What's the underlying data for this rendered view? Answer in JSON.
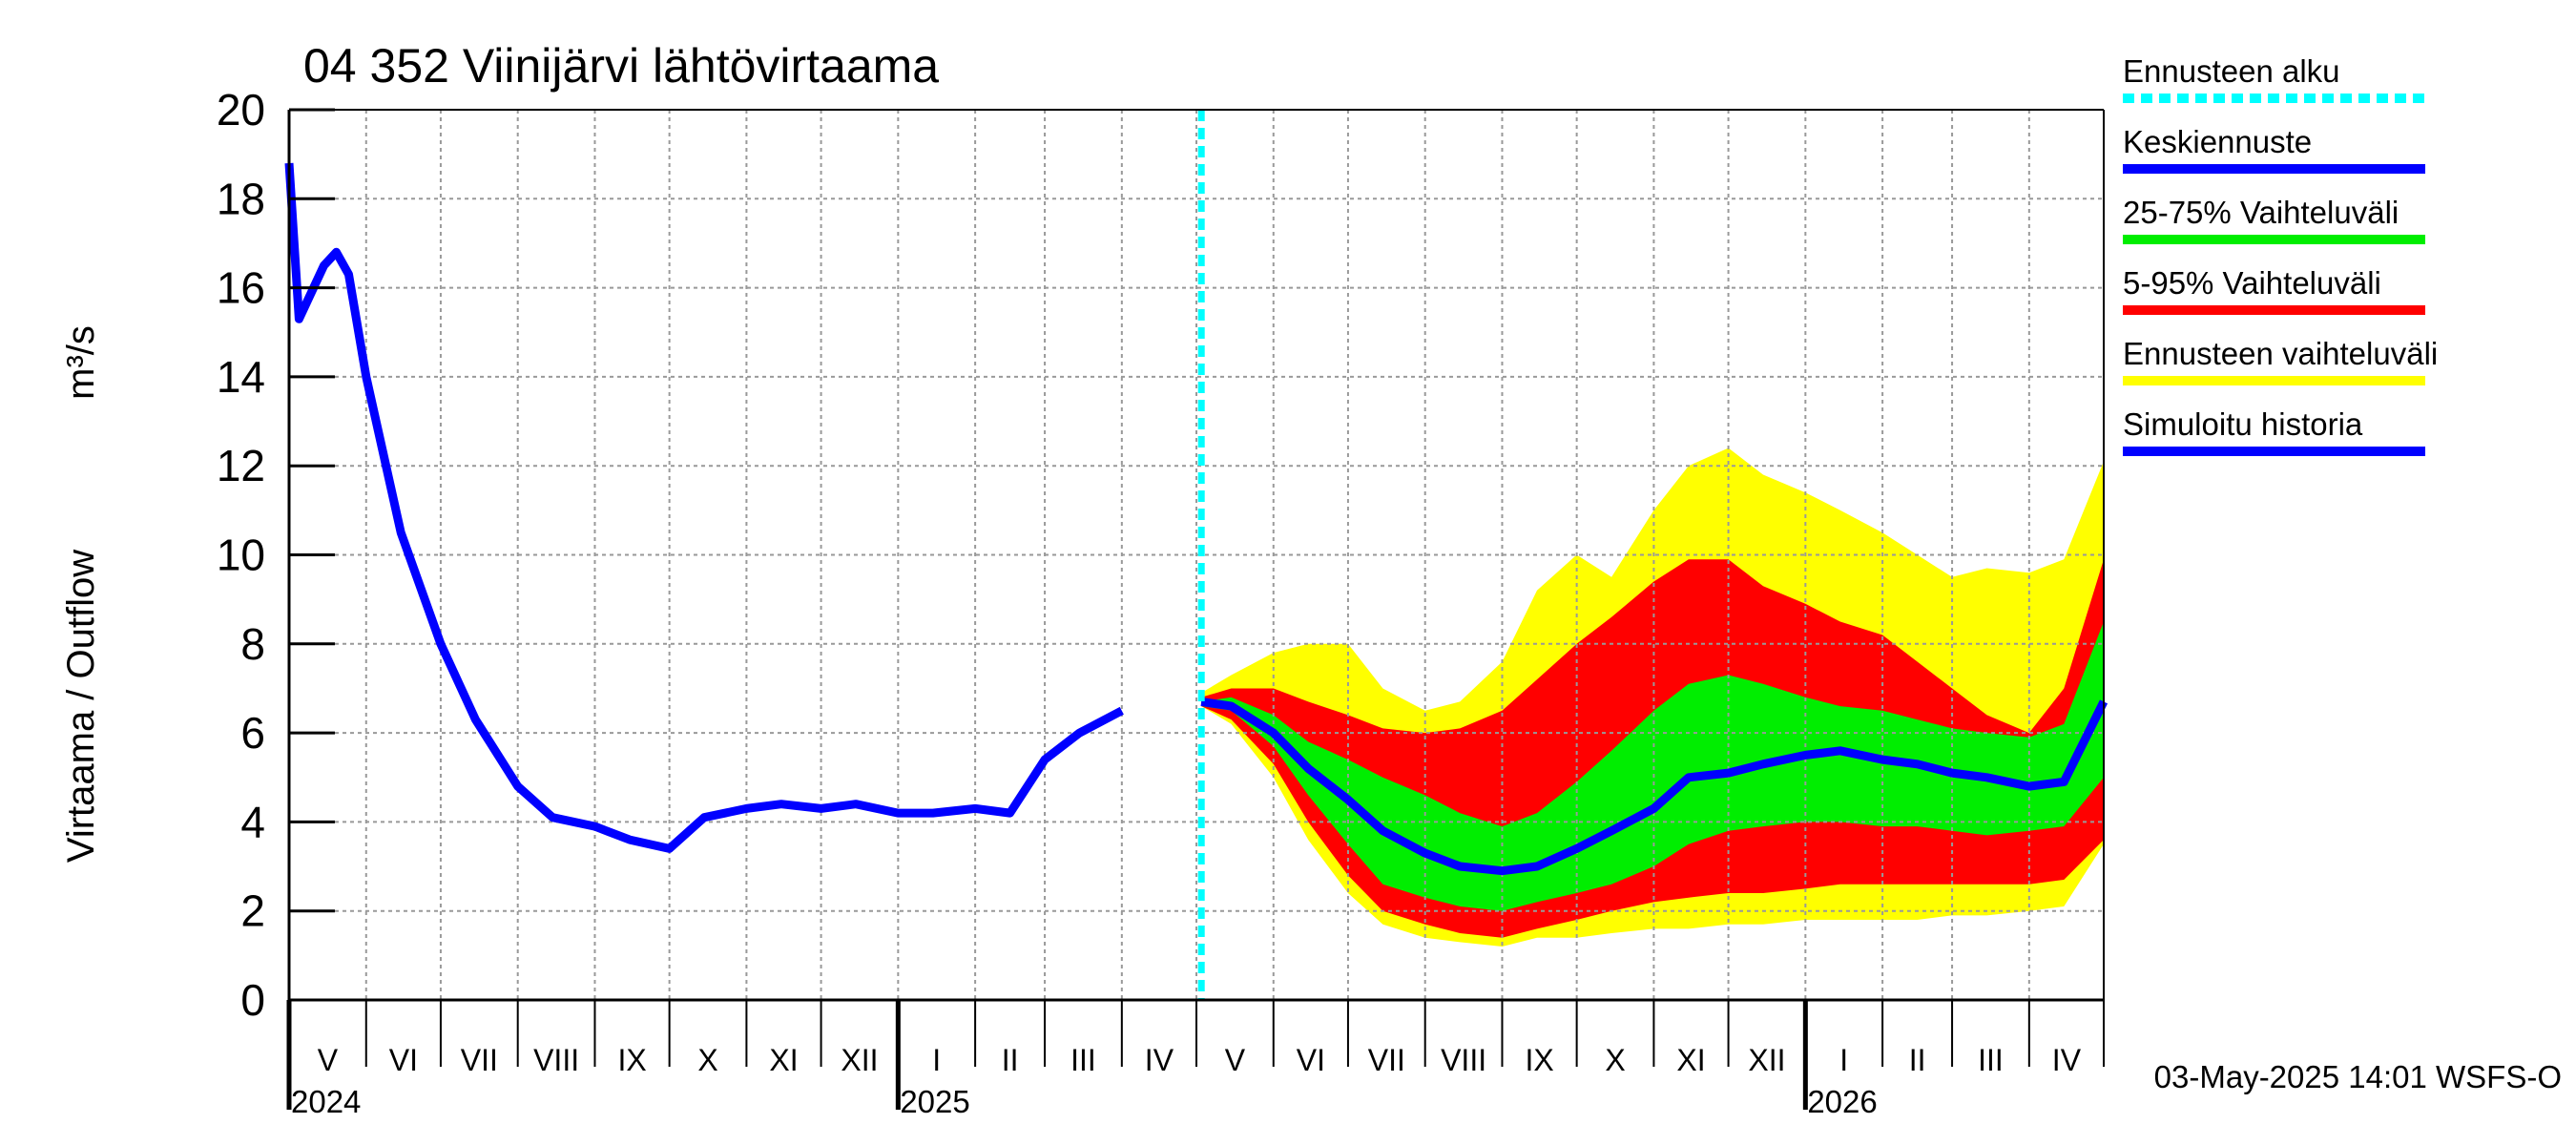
{
  "chart_data": {
    "type": "line",
    "title": "04 352 Viinijärvi lähtövirtaama",
    "ylabel": "Virtaama / Outflow",
    "yunit": "m³/s",
    "ylim": [
      0,
      20
    ],
    "yticks": [
      0,
      2,
      4,
      6,
      8,
      10,
      12,
      14,
      16,
      18,
      20
    ],
    "xlim": [
      "2024-05-01",
      "2026-05-01"
    ],
    "forecast_start": "2025-05-03",
    "grid": true,
    "legend_position": "right",
    "months": [
      {
        "label": "V",
        "start": "2024-05-01"
      },
      {
        "label": "VI",
        "start": "2024-06-01"
      },
      {
        "label": "VII",
        "start": "2024-07-01"
      },
      {
        "label": "VIII",
        "start": "2024-08-01"
      },
      {
        "label": "IX",
        "start": "2024-09-01"
      },
      {
        "label": "X",
        "start": "2024-10-01"
      },
      {
        "label": "XI",
        "start": "2024-11-01"
      },
      {
        "label": "XII",
        "start": "2024-12-01"
      },
      {
        "label": "I",
        "start": "2025-01-01"
      },
      {
        "label": "II",
        "start": "2025-02-01"
      },
      {
        "label": "III",
        "start": "2025-03-01"
      },
      {
        "label": "IV",
        "start": "2025-04-01"
      },
      {
        "label": "V",
        "start": "2025-05-01"
      },
      {
        "label": "VI",
        "start": "2025-06-01"
      },
      {
        "label": "VII",
        "start": "2025-07-01"
      },
      {
        "label": "VIII",
        "start": "2025-08-01"
      },
      {
        "label": "IX",
        "start": "2025-09-01"
      },
      {
        "label": "X",
        "start": "2025-10-01"
      },
      {
        "label": "XI",
        "start": "2025-11-01"
      },
      {
        "label": "XII",
        "start": "2025-12-01"
      },
      {
        "label": "I",
        "start": "2026-01-01"
      },
      {
        "label": "II",
        "start": "2026-02-01"
      },
      {
        "label": "III",
        "start": "2026-03-01"
      },
      {
        "label": "IV",
        "start": "2026-04-01"
      }
    ],
    "years": [
      {
        "label": "2024",
        "date": "2024-05-01"
      },
      {
        "label": "2025",
        "date": "2025-01-01"
      },
      {
        "label": "2026",
        "date": "2026-01-01"
      }
    ],
    "x": [
      "2024-05-01",
      "2024-05-05",
      "2024-05-15",
      "2024-05-20",
      "2024-05-25",
      "2024-06-01",
      "2024-06-15",
      "2024-07-01",
      "2024-07-15",
      "2024-08-01",
      "2024-08-15",
      "2024-09-01",
      "2024-09-15",
      "2024-10-01",
      "2024-10-15",
      "2024-11-01",
      "2024-11-15",
      "2024-12-01",
      "2024-12-15",
      "2025-01-01",
      "2025-01-15",
      "2025-02-01",
      "2025-02-15",
      "2025-03-01",
      "2025-03-15",
      "2025-04-01",
      "2025-04-10",
      "2025-04-20",
      "2025-05-03"
    ],
    "series": [
      {
        "name": "Simuloitu historia",
        "color": "#0000ff",
        "values": [
          18.8,
          15.3,
          16.5,
          16.8,
          16.3,
          14.0,
          10.5,
          8.0,
          6.3,
          4.8,
          4.1,
          3.9,
          3.6,
          3.4,
          4.1,
          4.3,
          4.4,
          4.3,
          4.4,
          4.2,
          4.2,
          4.3,
          4.2,
          5.4,
          6.0,
          6.5,
          null,
          null,
          null
        ]
      }
    ],
    "forecast": {
      "x": [
        "2025-05-03",
        "2025-05-15",
        "2025-06-01",
        "2025-06-15",
        "2025-07-01",
        "2025-07-15",
        "2025-08-01",
        "2025-08-15",
        "2025-09-01",
        "2025-09-15",
        "2025-10-01",
        "2025-10-15",
        "2025-11-01",
        "2025-11-15",
        "2025-12-01",
        "2025-12-15",
        "2026-01-01",
        "2026-01-15",
        "2026-02-01",
        "2026-02-15",
        "2026-03-01",
        "2026-03-15",
        "2026-04-01",
        "2026-04-15",
        "2026-05-01"
      ],
      "bands": [
        {
          "name": "Ennusteen vaihteluväli",
          "color": "#ffff00",
          "lower": [
            6.6,
            6.2,
            5.0,
            3.6,
            2.4,
            1.7,
            1.4,
            1.3,
            1.2,
            1.4,
            1.4,
            1.5,
            1.6,
            1.6,
            1.7,
            1.7,
            1.8,
            1.8,
            1.8,
            1.8,
            1.9,
            1.9,
            2.0,
            2.1,
            3.5
          ],
          "upper": [
            6.9,
            7.3,
            7.8,
            8.0,
            8.0,
            7.0,
            6.5,
            6.7,
            7.6,
            9.2,
            10.0,
            9.5,
            11.0,
            12.0,
            12.4,
            11.8,
            11.4,
            11.0,
            10.5,
            10.0,
            9.5,
            9.7,
            9.6,
            9.9,
            12.1
          ]
        },
        {
          "name": "5-95% Vaihteluväli",
          "color": "#ff0000",
          "lower": [
            6.6,
            6.3,
            5.3,
            4.0,
            2.8,
            2.0,
            1.7,
            1.5,
            1.4,
            1.6,
            1.8,
            2.0,
            2.2,
            2.3,
            2.4,
            2.4,
            2.5,
            2.6,
            2.6,
            2.6,
            2.6,
            2.6,
            2.6,
            2.7,
            3.6
          ],
          "upper": [
            6.8,
            7.0,
            7.0,
            6.7,
            6.4,
            6.1,
            6.0,
            6.1,
            6.5,
            7.2,
            8.0,
            8.6,
            9.4,
            9.9,
            9.9,
            9.3,
            8.9,
            8.5,
            8.2,
            7.6,
            7.0,
            6.4,
            6.0,
            7.0,
            9.9
          ]
        },
        {
          "name": "25-75% Vaihteluväli",
          "color": "#00ee00",
          "lower": [
            6.6,
            6.5,
            5.7,
            4.6,
            3.5,
            2.6,
            2.3,
            2.1,
            2.0,
            2.2,
            2.4,
            2.6,
            3.0,
            3.5,
            3.8,
            3.9,
            4.0,
            4.0,
            3.9,
            3.9,
            3.8,
            3.7,
            3.8,
            3.9,
            5.0
          ],
          "upper": [
            6.7,
            6.8,
            6.4,
            5.8,
            5.4,
            5.0,
            4.6,
            4.2,
            3.9,
            4.2,
            4.9,
            5.6,
            6.5,
            7.1,
            7.3,
            7.1,
            6.8,
            6.6,
            6.5,
            6.3,
            6.1,
            6.0,
            5.9,
            6.2,
            8.5
          ]
        },
        {
          "name": "Keskiennuste",
          "color": "#0000ff",
          "line": [
            6.7,
            6.6,
            6.0,
            5.2,
            4.5,
            3.8,
            3.3,
            3.0,
            2.9,
            3.0,
            3.4,
            3.8,
            4.3,
            5.0,
            5.1,
            5.3,
            5.5,
            5.6,
            5.4,
            5.3,
            5.1,
            5.0,
            4.8,
            4.9,
            6.7
          ]
        }
      ]
    },
    "legend": [
      {
        "label": "Ennusteen alku",
        "color": "#00ffff",
        "style": "dashed"
      },
      {
        "label": "Keskiennuste",
        "color": "#0000ff",
        "style": "solid"
      },
      {
        "label": "25-75% Vaihteluväli",
        "color": "#00ee00",
        "style": "solid"
      },
      {
        "label": "5-95% Vaihteluväli",
        "color": "#ff0000",
        "style": "solid"
      },
      {
        "label": "Ennusteen vaihteluväli",
        "color": "#ffff00",
        "style": "solid"
      },
      {
        "label": "Simuloitu historia",
        "color": "#0000ff",
        "style": "solid"
      }
    ],
    "footer": "03-May-2025 14:01 WSFS-O"
  }
}
